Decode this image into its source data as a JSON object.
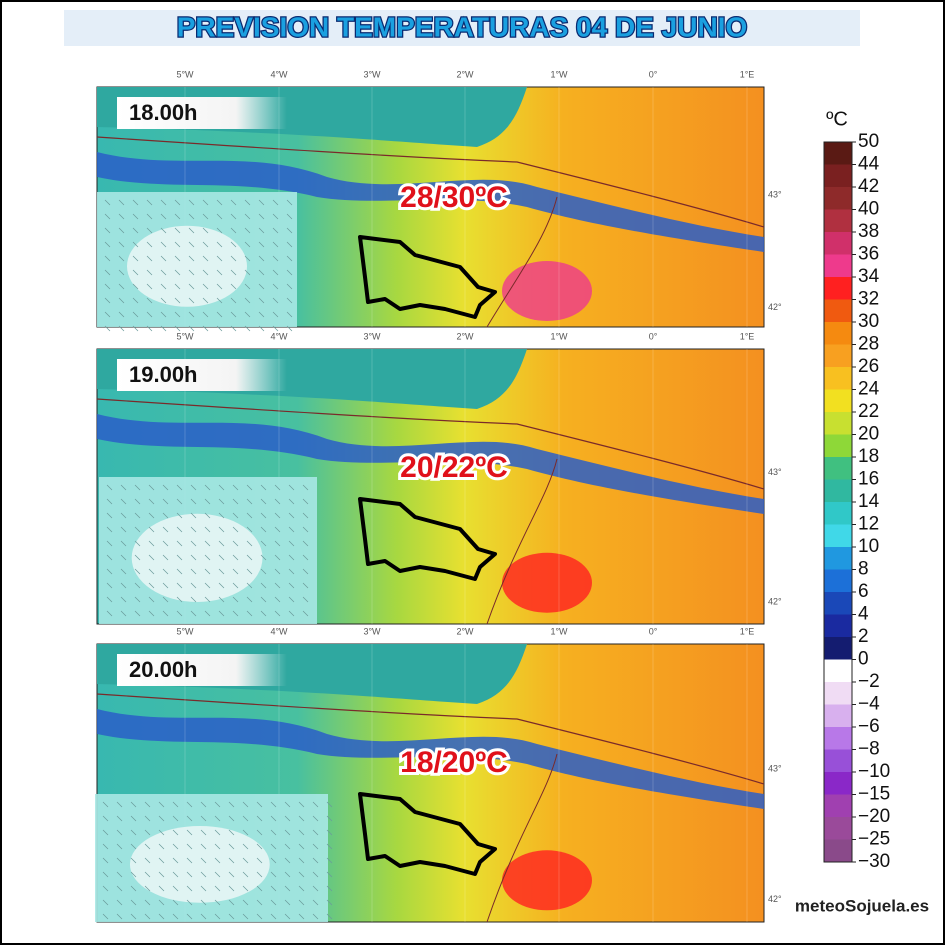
{
  "header": {
    "title": "PREVISION TEMPERATURAS 04 DE JUNIO"
  },
  "longitudes": [
    "5°W",
    "4°W",
    "3°W",
    "2°W",
    "1°W",
    "0°",
    "1°E"
  ],
  "latitudes": [
    "43°",
    "42°"
  ],
  "panels": [
    {
      "time": "18.00h",
      "temperature": "28/30ºC"
    },
    {
      "time": "19.00h",
      "temperature": "20/22ºC"
    },
    {
      "time": "20.00h",
      "temperature": "18/20ºC"
    }
  ],
  "colorbar": {
    "unit": "ºC",
    "ticks": [
      "50",
      "44",
      "42",
      "40",
      "38",
      "36",
      "34",
      "32",
      "30",
      "28",
      "26",
      "24",
      "22",
      "20",
      "18",
      "16",
      "14",
      "12",
      "10",
      "8",
      "6",
      "4",
      "2",
      "0",
      "−2",
      "−4",
      "−6",
      "−8",
      "−10",
      "−15",
      "−20",
      "−25",
      "−30"
    ],
    "colors": [
      "#5a1a14",
      "#7a2020",
      "#8e2a2a",
      "#b03040",
      "#d0306a",
      "#ee3a8c",
      "#ff2020",
      "#f05a10",
      "#f58a10",
      "#f8a020",
      "#f8c020",
      "#f2e020",
      "#c8e030",
      "#8ed838",
      "#40c080",
      "#30b8a0",
      "#30c8c8",
      "#40d8e8",
      "#2098e0",
      "#1c70d8",
      "#1a48b8",
      "#1a2aa0",
      "#141c70",
      "#ffffff",
      "#f0dcf4",
      "#d8b0ee",
      "#b878e8",
      "#9850d8",
      "#8a28c8",
      "#a040b0",
      "#9a4a9a",
      "#8a4a8a"
    ]
  },
  "logo": "meteoSojuela.es"
}
